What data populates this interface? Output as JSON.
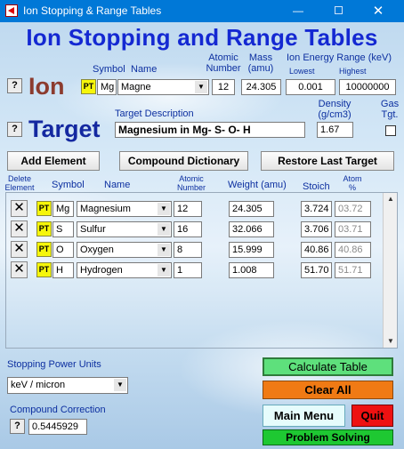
{
  "window": {
    "title": "Ion Stopping & Range Tables",
    "min_glyph": "—",
    "close_glyph": "✕"
  },
  "main_title": "Ion Stopping and Range Tables",
  "ion": {
    "help_label": "?",
    "heading": "Ion",
    "symbol_header": "Symbol",
    "name_header": "Name",
    "atomic_number_header_1": "Atomic",
    "atomic_number_header_2": "Number",
    "mass_header_1": "Mass",
    "mass_header_2": "(amu)",
    "energy_header": "Ion Energy Range (keV)",
    "lowest_header": "Lowest",
    "highest_header": "Highest",
    "pt_label": "PT",
    "symbol": "Mg",
    "name": "Magne",
    "atomic_number": "12",
    "mass": "24.305",
    "lowest": "0.001",
    "highest": "10000000"
  },
  "target": {
    "help_label": "?",
    "heading": "Target",
    "description_header": "Target Description",
    "description": "Magnesium in Mg- S- O- H",
    "density_header_1": "Density",
    "density_header_2": "(g/cm3)",
    "density": "1.67",
    "gas_header_1": "Gas",
    "gas_header_2": "Tgt.",
    "gas_checked": false
  },
  "buttons": {
    "add_element": "Add Element",
    "compound_dictionary": "Compound Dictionary",
    "restore_last_target": "Restore Last Target",
    "calculate_table": "Calculate Table",
    "clear_all": "Clear All",
    "main_menu": "Main Menu",
    "quit": "Quit",
    "problem_solving": "Problem Solving"
  },
  "table": {
    "headers": {
      "delete_1": "Delete",
      "delete_2": "Element",
      "symbol": "Symbol",
      "name": "Name",
      "atomic_1": "Atomic",
      "atomic_2": "Number",
      "weight": "Weight (amu)",
      "stoich": "Stoich",
      "atom_1": "Atom",
      "atom_2": "%"
    },
    "delete_glyph": "✕",
    "pt_label": "PT",
    "rows": [
      {
        "symbol": "Mg",
        "name": "Magnesium",
        "atomic_number": "12",
        "weight": "24.305",
        "stoich": "3.724",
        "atom_pct": "03.72"
      },
      {
        "symbol": "S",
        "name": "Sulfur",
        "atomic_number": "16",
        "weight": "32.066",
        "stoich": "3.706",
        "atom_pct": "03.71"
      },
      {
        "symbol": "O",
        "name": "Oxygen",
        "atomic_number": "8",
        "weight": "15.999",
        "stoich": "40.86",
        "atom_pct": "40.86"
      },
      {
        "symbol": "H",
        "name": "Hydrogen",
        "atomic_number": "1",
        "weight": "1.008",
        "stoich": "51.70",
        "atom_pct": "51.71"
      }
    ]
  },
  "stopping_units": {
    "label": "Stopping Power Units",
    "value": "keV / micron"
  },
  "compound_correction": {
    "label": "Compound Correction",
    "help_label": "?",
    "value": "0.5445929"
  }
}
